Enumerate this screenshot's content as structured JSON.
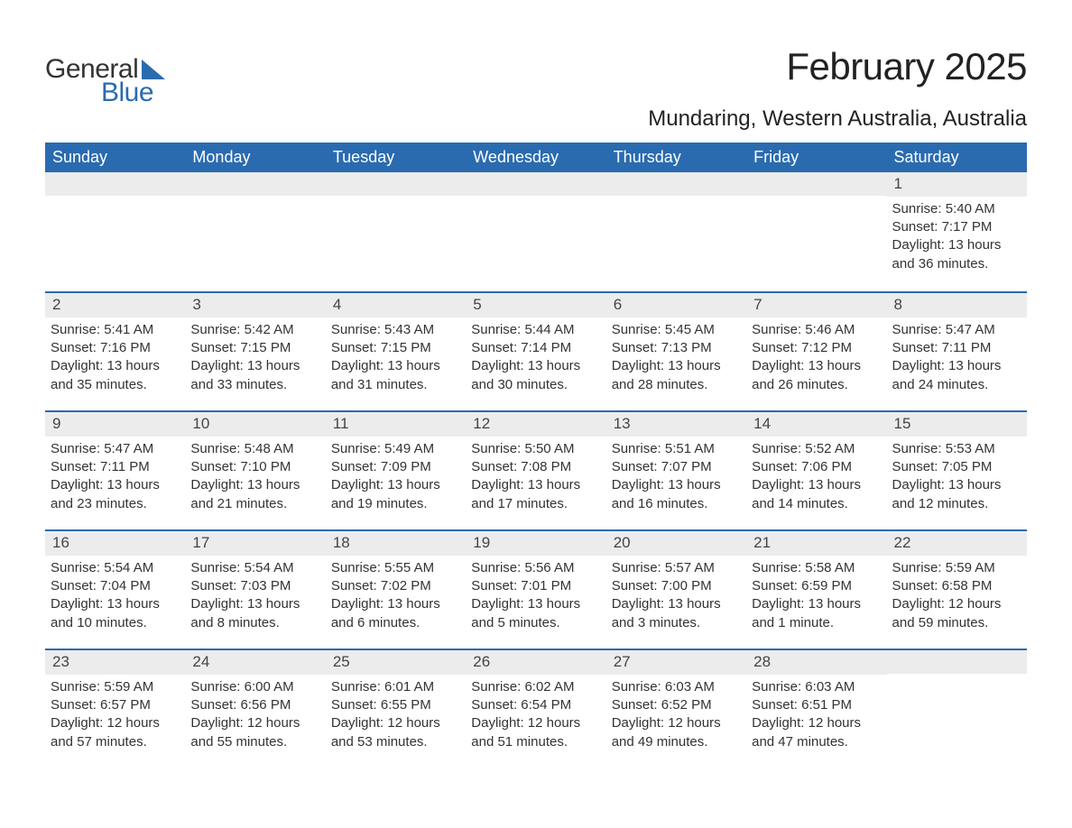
{
  "logo": {
    "text1": "General",
    "text2": "Blue",
    "icon_color": "#2a6bb0"
  },
  "title": "February 2025",
  "location": "Mundaring, Western Australia, Australia",
  "colors": {
    "header_bg": "#2a6bb0",
    "header_text": "#ffffff",
    "row_border": "#2a6bb0",
    "daynum_bg": "#ececec",
    "text": "#333333",
    "background": "#ffffff"
  },
  "typography": {
    "title_fontsize": 42,
    "location_fontsize": 24,
    "dow_fontsize": 18,
    "body_fontsize": 15
  },
  "days_of_week": [
    "Sunday",
    "Monday",
    "Tuesday",
    "Wednesday",
    "Thursday",
    "Friday",
    "Saturday"
  ],
  "weeks": [
    [
      null,
      null,
      null,
      null,
      null,
      null,
      {
        "n": "1",
        "sunrise": "Sunrise: 5:40 AM",
        "sunset": "Sunset: 7:17 PM",
        "day1": "Daylight: 13 hours",
        "day2": "and 36 minutes."
      }
    ],
    [
      {
        "n": "2",
        "sunrise": "Sunrise: 5:41 AM",
        "sunset": "Sunset: 7:16 PM",
        "day1": "Daylight: 13 hours",
        "day2": "and 35 minutes."
      },
      {
        "n": "3",
        "sunrise": "Sunrise: 5:42 AM",
        "sunset": "Sunset: 7:15 PM",
        "day1": "Daylight: 13 hours",
        "day2": "and 33 minutes."
      },
      {
        "n": "4",
        "sunrise": "Sunrise: 5:43 AM",
        "sunset": "Sunset: 7:15 PM",
        "day1": "Daylight: 13 hours",
        "day2": "and 31 minutes."
      },
      {
        "n": "5",
        "sunrise": "Sunrise: 5:44 AM",
        "sunset": "Sunset: 7:14 PM",
        "day1": "Daylight: 13 hours",
        "day2": "and 30 minutes."
      },
      {
        "n": "6",
        "sunrise": "Sunrise: 5:45 AM",
        "sunset": "Sunset: 7:13 PM",
        "day1": "Daylight: 13 hours",
        "day2": "and 28 minutes."
      },
      {
        "n": "7",
        "sunrise": "Sunrise: 5:46 AM",
        "sunset": "Sunset: 7:12 PM",
        "day1": "Daylight: 13 hours",
        "day2": "and 26 minutes."
      },
      {
        "n": "8",
        "sunrise": "Sunrise: 5:47 AM",
        "sunset": "Sunset: 7:11 PM",
        "day1": "Daylight: 13 hours",
        "day2": "and 24 minutes."
      }
    ],
    [
      {
        "n": "9",
        "sunrise": "Sunrise: 5:47 AM",
        "sunset": "Sunset: 7:11 PM",
        "day1": "Daylight: 13 hours",
        "day2": "and 23 minutes."
      },
      {
        "n": "10",
        "sunrise": "Sunrise: 5:48 AM",
        "sunset": "Sunset: 7:10 PM",
        "day1": "Daylight: 13 hours",
        "day2": "and 21 minutes."
      },
      {
        "n": "11",
        "sunrise": "Sunrise: 5:49 AM",
        "sunset": "Sunset: 7:09 PM",
        "day1": "Daylight: 13 hours",
        "day2": "and 19 minutes."
      },
      {
        "n": "12",
        "sunrise": "Sunrise: 5:50 AM",
        "sunset": "Sunset: 7:08 PM",
        "day1": "Daylight: 13 hours",
        "day2": "and 17 minutes."
      },
      {
        "n": "13",
        "sunrise": "Sunrise: 5:51 AM",
        "sunset": "Sunset: 7:07 PM",
        "day1": "Daylight: 13 hours",
        "day2": "and 16 minutes."
      },
      {
        "n": "14",
        "sunrise": "Sunrise: 5:52 AM",
        "sunset": "Sunset: 7:06 PM",
        "day1": "Daylight: 13 hours",
        "day2": "and 14 minutes."
      },
      {
        "n": "15",
        "sunrise": "Sunrise: 5:53 AM",
        "sunset": "Sunset: 7:05 PM",
        "day1": "Daylight: 13 hours",
        "day2": "and 12 minutes."
      }
    ],
    [
      {
        "n": "16",
        "sunrise": "Sunrise: 5:54 AM",
        "sunset": "Sunset: 7:04 PM",
        "day1": "Daylight: 13 hours",
        "day2": "and 10 minutes."
      },
      {
        "n": "17",
        "sunrise": "Sunrise: 5:54 AM",
        "sunset": "Sunset: 7:03 PM",
        "day1": "Daylight: 13 hours",
        "day2": "and 8 minutes."
      },
      {
        "n": "18",
        "sunrise": "Sunrise: 5:55 AM",
        "sunset": "Sunset: 7:02 PM",
        "day1": "Daylight: 13 hours",
        "day2": "and 6 minutes."
      },
      {
        "n": "19",
        "sunrise": "Sunrise: 5:56 AM",
        "sunset": "Sunset: 7:01 PM",
        "day1": "Daylight: 13 hours",
        "day2": "and 5 minutes."
      },
      {
        "n": "20",
        "sunrise": "Sunrise: 5:57 AM",
        "sunset": "Sunset: 7:00 PM",
        "day1": "Daylight: 13 hours",
        "day2": "and 3 minutes."
      },
      {
        "n": "21",
        "sunrise": "Sunrise: 5:58 AM",
        "sunset": "Sunset: 6:59 PM",
        "day1": "Daylight: 13 hours",
        "day2": "and 1 minute."
      },
      {
        "n": "22",
        "sunrise": "Sunrise: 5:59 AM",
        "sunset": "Sunset: 6:58 PM",
        "day1": "Daylight: 12 hours",
        "day2": "and 59 minutes."
      }
    ],
    [
      {
        "n": "23",
        "sunrise": "Sunrise: 5:59 AM",
        "sunset": "Sunset: 6:57 PM",
        "day1": "Daylight: 12 hours",
        "day2": "and 57 minutes."
      },
      {
        "n": "24",
        "sunrise": "Sunrise: 6:00 AM",
        "sunset": "Sunset: 6:56 PM",
        "day1": "Daylight: 12 hours",
        "day2": "and 55 minutes."
      },
      {
        "n": "25",
        "sunrise": "Sunrise: 6:01 AM",
        "sunset": "Sunset: 6:55 PM",
        "day1": "Daylight: 12 hours",
        "day2": "and 53 minutes."
      },
      {
        "n": "26",
        "sunrise": "Sunrise: 6:02 AM",
        "sunset": "Sunset: 6:54 PM",
        "day1": "Daylight: 12 hours",
        "day2": "and 51 minutes."
      },
      {
        "n": "27",
        "sunrise": "Sunrise: 6:03 AM",
        "sunset": "Sunset: 6:52 PM",
        "day1": "Daylight: 12 hours",
        "day2": "and 49 minutes."
      },
      {
        "n": "28",
        "sunrise": "Sunrise: 6:03 AM",
        "sunset": "Sunset: 6:51 PM",
        "day1": "Daylight: 12 hours",
        "day2": "and 47 minutes."
      },
      null
    ]
  ]
}
